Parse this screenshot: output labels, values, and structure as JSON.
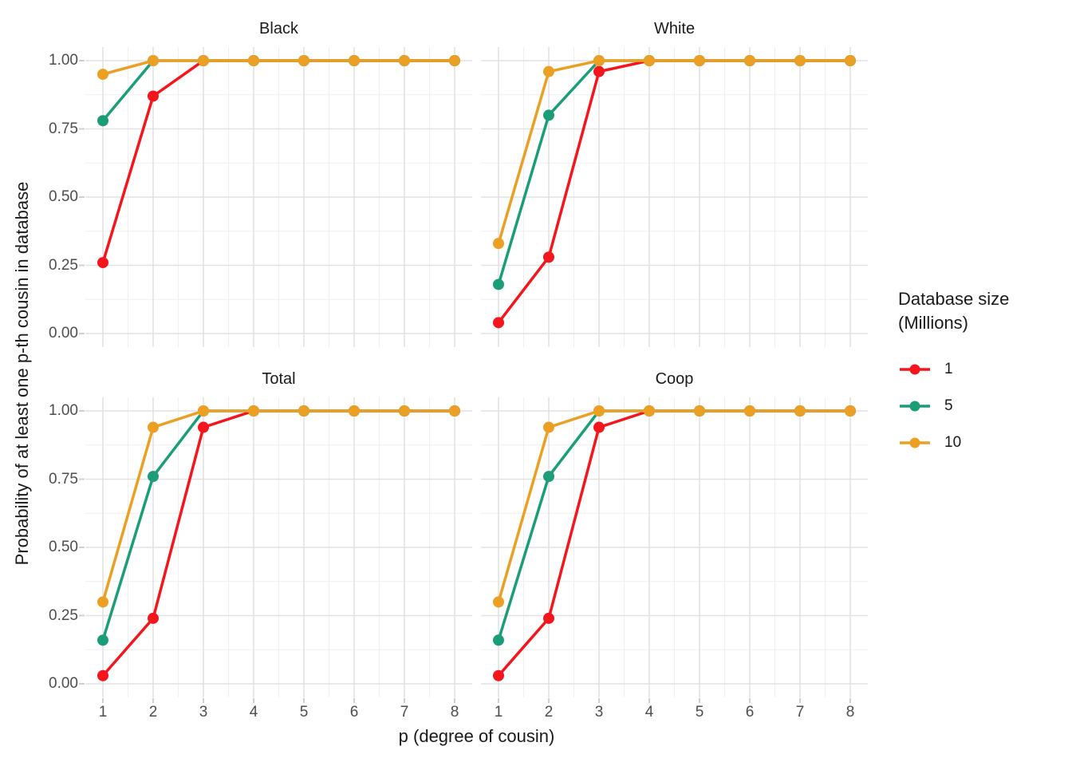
{
  "figure": {
    "legend": {
      "title_line1": "Database size",
      "title_line2": "(Millions)"
    }
  },
  "chart_data": {
    "type": "line",
    "title": "",
    "xlabel": "p (degree of cousin)",
    "ylabel": "Probability of at least one p-th cousin in database",
    "x": [
      1,
      2,
      3,
      4,
      5,
      6,
      7,
      8
    ],
    "x_tick_labels": [
      "1",
      "2",
      "3",
      "4",
      "5",
      "6",
      "7",
      "8"
    ],
    "ylim": [
      0,
      1
    ],
    "y_major_ticks": [
      1.0,
      0.75,
      0.5,
      0.25,
      0.0
    ],
    "y_tick_labels": [
      "1.00",
      "0.75",
      "0.50",
      "0.25",
      "0.00"
    ],
    "grid": "major-and-minor",
    "legend_title": "Database size (Millions)",
    "legend_position": "right",
    "facets": [
      {
        "title": "Black",
        "series": [
          {
            "name": "1",
            "color": "#F5151C",
            "values": [
              0.26,
              0.87,
              1.0,
              1.0,
              1.0,
              1.0,
              1.0,
              1.0
            ]
          },
          {
            "name": "5",
            "color": "#1B9E77",
            "values": [
              0.78,
              1.0,
              1.0,
              1.0,
              1.0,
              1.0,
              1.0,
              1.0
            ]
          },
          {
            "name": "10",
            "color": "#ECA023",
            "values": [
              0.95,
              1.0,
              1.0,
              1.0,
              1.0,
              1.0,
              1.0,
              1.0
            ]
          }
        ]
      },
      {
        "title": "White",
        "series": [
          {
            "name": "1",
            "color": "#F5151C",
            "values": [
              0.04,
              0.28,
              0.96,
              1.0,
              1.0,
              1.0,
              1.0,
              1.0
            ]
          },
          {
            "name": "5",
            "color": "#1B9E77",
            "values": [
              0.18,
              0.8,
              1.0,
              1.0,
              1.0,
              1.0,
              1.0,
              1.0
            ]
          },
          {
            "name": "10",
            "color": "#ECA023",
            "values": [
              0.33,
              0.96,
              1.0,
              1.0,
              1.0,
              1.0,
              1.0,
              1.0
            ]
          }
        ]
      },
      {
        "title": "Total",
        "series": [
          {
            "name": "1",
            "color": "#F5151C",
            "values": [
              0.03,
              0.24,
              0.94,
              1.0,
              1.0,
              1.0,
              1.0,
              1.0
            ]
          },
          {
            "name": "5",
            "color": "#1B9E77",
            "values": [
              0.16,
              0.76,
              1.0,
              1.0,
              1.0,
              1.0,
              1.0,
              1.0
            ]
          },
          {
            "name": "10",
            "color": "#ECA023",
            "values": [
              0.3,
              0.94,
              1.0,
              1.0,
              1.0,
              1.0,
              1.0,
              1.0
            ]
          }
        ]
      },
      {
        "title": "Coop",
        "series": [
          {
            "name": "1",
            "color": "#F5151C",
            "values": [
              0.03,
              0.24,
              0.94,
              1.0,
              1.0,
              1.0,
              1.0,
              1.0
            ]
          },
          {
            "name": "5",
            "color": "#1B9E77",
            "values": [
              0.16,
              0.76,
              1.0,
              1.0,
              1.0,
              1.0,
              1.0,
              1.0
            ]
          },
          {
            "name": "10",
            "color": "#ECA023",
            "values": [
              0.3,
              0.94,
              1.0,
              1.0,
              1.0,
              1.0,
              1.0,
              1.0
            ]
          }
        ]
      }
    ]
  }
}
